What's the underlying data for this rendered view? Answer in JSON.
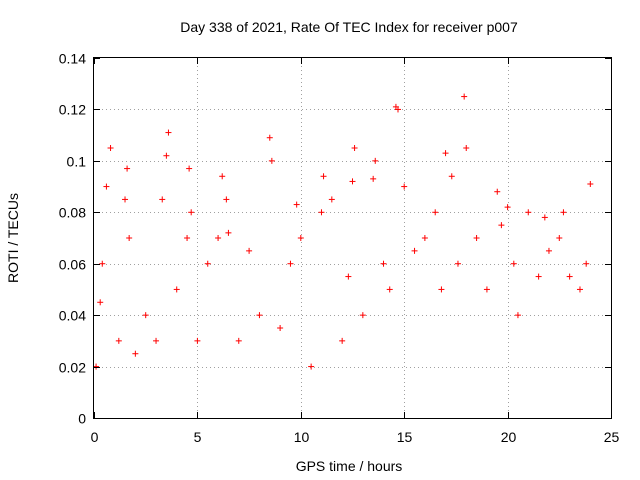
{
  "chart_data": {
    "type": "scatter",
    "title": "Day 338 of 2021, Rate Of TEC Index for receiver p007",
    "xlabel": "GPS time / hours",
    "ylabel": "ROTI / TECUs",
    "xlim": [
      0,
      25
    ],
    "ylim": [
      0,
      0.14
    ],
    "x_ticks": [
      "0",
      "5",
      "10",
      "15",
      "20",
      "25"
    ],
    "y_ticks": [
      "0",
      "0.02",
      "0.04",
      "0.06",
      "0.08",
      "0.1",
      "0.12",
      "0.14"
    ],
    "grid": true,
    "marker": "+",
    "color": "#ff0000",
    "series": [
      {
        "x": [
          0.1,
          0.3,
          0.4,
          0.6,
          0.8,
          1.2,
          1.5,
          1.6,
          1.7,
          2.0,
          2.5,
          3.0,
          3.3,
          3.5,
          3.6,
          4.0,
          4.5,
          4.6,
          4.7,
          5.0,
          5.5,
          6.0,
          6.2,
          6.4,
          6.5,
          7.0,
          7.5,
          8.0,
          8.5,
          8.6,
          9.0,
          9.5,
          9.8,
          10.0,
          10.5,
          11.0,
          11.1,
          11.5,
          12.0,
          12.3,
          12.5,
          12.6,
          13.0,
          13.5,
          13.6,
          14.0,
          14.3,
          14.6,
          14.7,
          15.0,
          15.5,
          16.0,
          16.5,
          16.8,
          17.0,
          17.3,
          17.6,
          17.9,
          18.0,
          18.5,
          19.0,
          19.5,
          19.7,
          20.0,
          20.3,
          20.5,
          21.0,
          21.5,
          21.8,
          22.0,
          22.5,
          22.7,
          23.0,
          23.5,
          23.8,
          24.0
        ],
        "y": [
          0.02,
          0.045,
          0.06,
          0.09,
          0.105,
          0.03,
          0.085,
          0.097,
          0.07,
          0.025,
          0.04,
          0.03,
          0.085,
          0.102,
          0.111,
          0.05,
          0.07,
          0.097,
          0.08,
          0.03,
          0.06,
          0.07,
          0.094,
          0.085,
          0.072,
          0.03,
          0.065,
          0.04,
          0.109,
          0.1,
          0.035,
          0.06,
          0.083,
          0.07,
          0.02,
          0.08,
          0.094,
          0.085,
          0.03,
          0.055,
          0.092,
          0.105,
          0.04,
          0.093,
          0.1,
          0.06,
          0.05,
          0.121,
          0.12,
          0.09,
          0.065,
          0.07,
          0.08,
          0.05,
          0.103,
          0.094,
          0.06,
          0.125,
          0.105,
          0.07,
          0.05,
          0.088,
          0.075,
          0.082,
          0.06,
          0.04,
          0.08,
          0.055,
          0.078,
          0.065,
          0.07,
          0.08,
          0.055,
          0.05,
          0.06,
          0.091
        ]
      }
    ]
  }
}
